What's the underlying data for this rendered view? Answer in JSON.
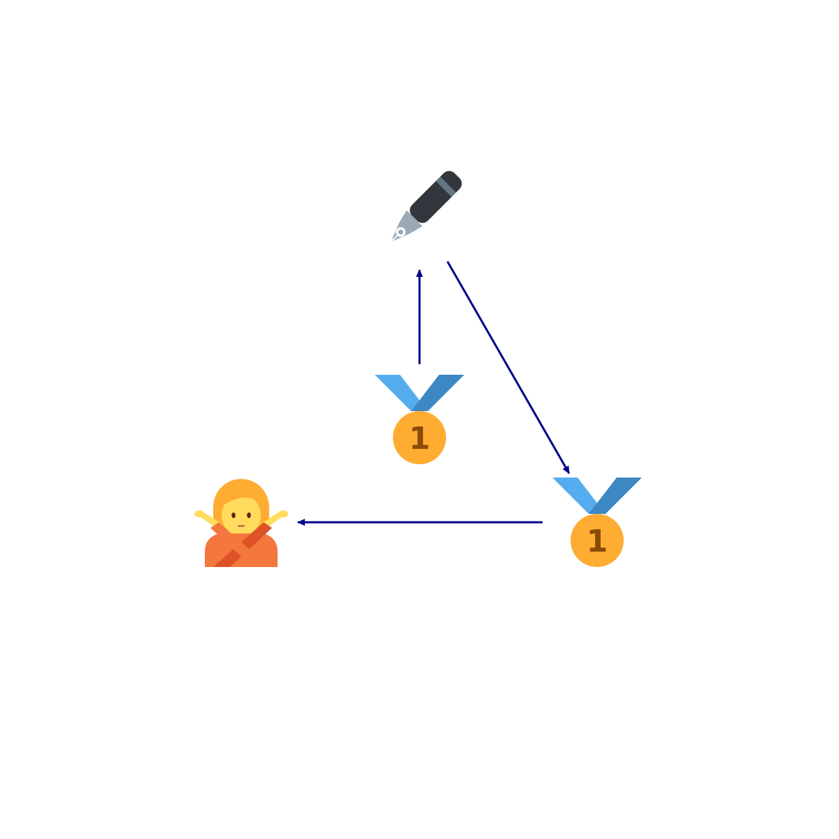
{
  "diagram": {
    "background": "#ffffff",
    "edge_color": "#00008b",
    "nodes": [
      {
        "id": "pen",
        "icon": "fountain-pen-icon"
      },
      {
        "id": "medal_center",
        "icon": "first-place-medal-icon",
        "label": "1"
      },
      {
        "id": "medal_right",
        "icon": "first-place-medal-icon",
        "label": "1"
      },
      {
        "id": "person",
        "icon": "person-gesturing-no-icon"
      }
    ],
    "edges": [
      {
        "from": "medal_center",
        "to": "pen"
      },
      {
        "from": "pen",
        "to": "medal_right"
      },
      {
        "from": "medal_right",
        "to": "person"
      }
    ],
    "palette": {
      "ribbon_light": "#55acee",
      "ribbon_dark": "#3b88c3",
      "medal_gold": "#ffac33",
      "medal_numeral": "#8a4b08",
      "pen_body": "#31373d",
      "pen_band": "#66757f",
      "pen_nib": "#99aab5",
      "skin": "#ffdc5d",
      "hair": "#ffac33",
      "shirt_light": "#f4773d",
      "shirt_dark": "#dd5227"
    }
  }
}
